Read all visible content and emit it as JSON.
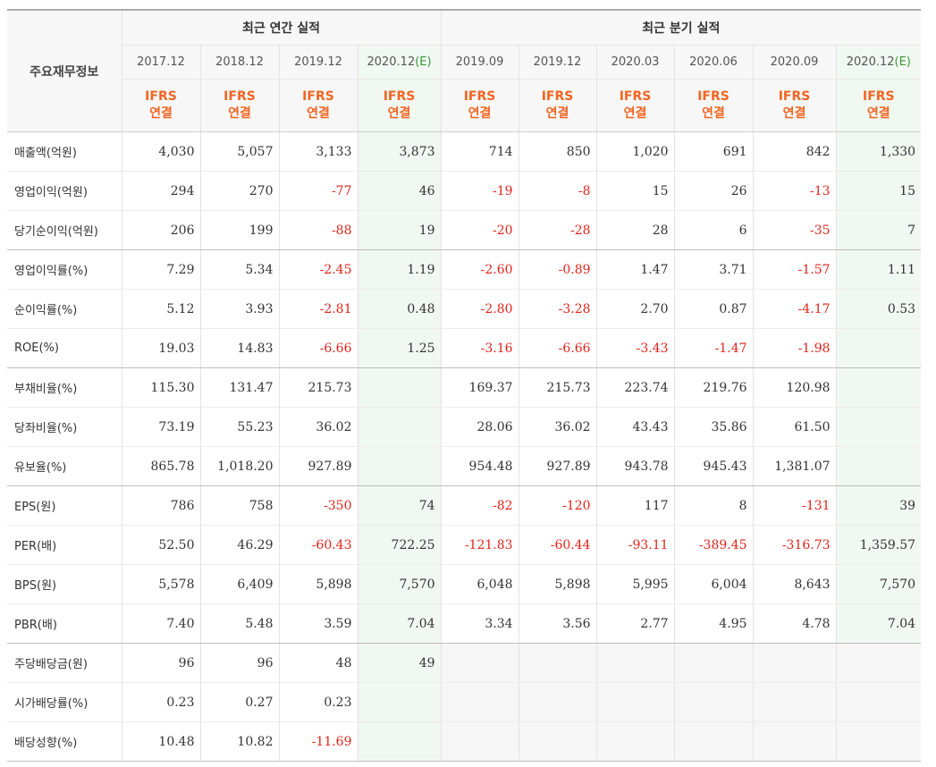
{
  "header": {
    "row_label": "주요재무정보",
    "annual_title": "최근 연간 실적",
    "quarterly_title": "최근 분기 실적",
    "estimate_mark": "(E)",
    "annual_periods": [
      "2017.12",
      "2018.12",
      "2019.12",
      "2020.12"
    ],
    "annual_estimate": [
      false,
      false,
      false,
      true
    ],
    "quarterly_periods": [
      "2019.09",
      "2019.12",
      "2020.03",
      "2020.06",
      "2020.09",
      "2020.12"
    ],
    "quarterly_estimate": [
      false,
      false,
      false,
      false,
      false,
      true
    ],
    "ifrs_line1": "IFRS",
    "ifrs_line2": "연결"
  },
  "colors": {
    "accent_orange": "#f26522",
    "negative_red": "#e2231a",
    "estimate_green": "#3a9a3a",
    "estimate_bg": "#f1f7f1"
  },
  "rows": [
    {
      "label": "매출액(억원)",
      "annual": [
        "4,030",
        "5,057",
        "3,133",
        "3,873"
      ],
      "quarterly": [
        "714",
        "850",
        "1,020",
        "691",
        "842",
        "1,330"
      ]
    },
    {
      "label": "영업이익(억원)",
      "annual": [
        "294",
        "270",
        "-77",
        "46"
      ],
      "quarterly": [
        "-19",
        "-8",
        "15",
        "26",
        "-13",
        "15"
      ]
    },
    {
      "label": "당기순이익(억원)",
      "annual": [
        "206",
        "199",
        "-88",
        "19"
      ],
      "quarterly": [
        "-20",
        "-28",
        "28",
        "6",
        "-35",
        "7"
      ]
    },
    {
      "label": "영업이익률(%)",
      "annual": [
        "7.29",
        "5.34",
        "-2.45",
        "1.19"
      ],
      "quarterly": [
        "-2.60",
        "-0.89",
        "1.47",
        "3.71",
        "-1.57",
        "1.11"
      ]
    },
    {
      "label": "순이익률(%)",
      "annual": [
        "5.12",
        "3.93",
        "-2.81",
        "0.48"
      ],
      "quarterly": [
        "-2.80",
        "-3.28",
        "2.70",
        "0.87",
        "-4.17",
        "0.53"
      ]
    },
    {
      "label": "ROE(%)",
      "annual": [
        "19.03",
        "14.83",
        "-6.66",
        "1.25"
      ],
      "quarterly": [
        "-3.16",
        "-6.66",
        "-3.43",
        "-1.47",
        "-1.98",
        ""
      ]
    },
    {
      "label": "부채비율(%)",
      "annual": [
        "115.30",
        "131.47",
        "215.73",
        ""
      ],
      "quarterly": [
        "169.37",
        "215.73",
        "223.74",
        "219.76",
        "120.98",
        ""
      ]
    },
    {
      "label": "당좌비율(%)",
      "annual": [
        "73.19",
        "55.23",
        "36.02",
        ""
      ],
      "quarterly": [
        "28.06",
        "36.02",
        "43.43",
        "35.86",
        "61.50",
        ""
      ]
    },
    {
      "label": "유보율(%)",
      "annual": [
        "865.78",
        "1,018.20",
        "927.89",
        ""
      ],
      "quarterly": [
        "954.48",
        "927.89",
        "943.78",
        "945.43",
        "1,381.07",
        ""
      ]
    },
    {
      "label": "EPS(원)",
      "annual": [
        "786",
        "758",
        "-350",
        "74"
      ],
      "quarterly": [
        "-82",
        "-120",
        "117",
        "8",
        "-131",
        "39"
      ]
    },
    {
      "label": "PER(배)",
      "annual": [
        "52.50",
        "46.29",
        "-60.43",
        "722.25"
      ],
      "quarterly": [
        "-121.83",
        "-60.44",
        "-93.11",
        "-389.45",
        "-316.73",
        "1,359.57"
      ]
    },
    {
      "label": "BPS(원)",
      "annual": [
        "5,578",
        "6,409",
        "5,898",
        "7,570"
      ],
      "quarterly": [
        "6,048",
        "5,898",
        "5,995",
        "6,004",
        "8,643",
        "7,570"
      ]
    },
    {
      "label": "PBR(배)",
      "annual": [
        "7.40",
        "5.48",
        "3.59",
        "7.04"
      ],
      "quarterly": [
        "3.34",
        "3.56",
        "2.77",
        "4.95",
        "4.78",
        "7.04"
      ]
    },
    {
      "label": "주당배당금(원)",
      "annual": [
        "96",
        "96",
        "48",
        "49"
      ],
      "quarterly": [
        "",
        "",
        "",
        "",
        "",
        ""
      ],
      "quarterly_blank": true
    },
    {
      "label": "시가배당률(%)",
      "annual": [
        "0.23",
        "0.27",
        "0.23",
        ""
      ],
      "quarterly": [
        "",
        "",
        "",
        "",
        "",
        ""
      ],
      "quarterly_blank": true
    },
    {
      "label": "배당성향(%)",
      "annual": [
        "10.48",
        "10.82",
        "-11.69",
        ""
      ],
      "quarterly": [
        "",
        "",
        "",
        "",
        "",
        ""
      ],
      "quarterly_blank": true
    }
  ]
}
